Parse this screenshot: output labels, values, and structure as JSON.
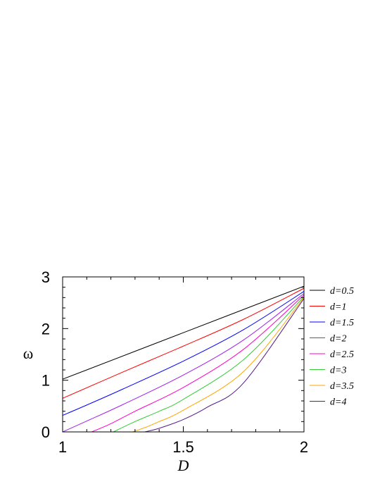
{
  "chart_data": {
    "type": "line",
    "title": "",
    "xlabel": "D",
    "ylabel": "ω",
    "xlim": [
      1,
      2
    ],
    "ylim": [
      0,
      3
    ],
    "x_ticks": [
      "1",
      "1.5",
      "2"
    ],
    "y_ticks": [
      "0",
      "1",
      "2",
      "3"
    ],
    "grid": false,
    "legend_position": "right",
    "series": [
      {
        "name": "d=0.5",
        "color": "#000000",
        "points": [
          [
            1.0,
            1.02
          ],
          [
            1.5,
            1.92
          ],
          [
            2.0,
            2.82
          ]
        ]
      },
      {
        "name": "d=1",
        "color": "#ff0000",
        "points": [
          [
            1.0,
            0.65
          ],
          [
            1.25,
            1.16
          ],
          [
            1.5,
            1.66
          ],
          [
            1.75,
            2.18
          ],
          [
            2.0,
            2.78
          ]
        ]
      },
      {
        "name": "d=1.5",
        "color": "#0000ff",
        "points": [
          [
            1.0,
            0.32
          ],
          [
            1.1,
            0.52
          ],
          [
            1.25,
            0.83
          ],
          [
            1.5,
            1.37
          ],
          [
            1.75,
            1.98
          ],
          [
            2.0,
            2.72
          ]
        ]
      },
      {
        "name": "d=2",
        "color": "#a020f0",
        "points": [
          [
            1.0,
            0.0
          ],
          [
            1.1,
            0.21
          ],
          [
            1.25,
            0.53
          ],
          [
            1.5,
            1.1
          ],
          [
            1.75,
            1.78
          ],
          [
            2.0,
            2.68
          ]
        ]
      },
      {
        "name": "d=2.5",
        "color": "#ff00c8",
        "points": [
          [
            1.12,
            0.0
          ],
          [
            1.2,
            0.16
          ],
          [
            1.3,
            0.4
          ],
          [
            1.5,
            0.86
          ],
          [
            1.75,
            1.6
          ],
          [
            2.0,
            2.65
          ]
        ]
      },
      {
        "name": "d=3",
        "color": "#33cc33",
        "points": [
          [
            1.21,
            0.0
          ],
          [
            1.3,
            0.2
          ],
          [
            1.4,
            0.4
          ],
          [
            1.5,
            0.63
          ],
          [
            1.75,
            1.4
          ],
          [
            2.0,
            2.62
          ]
        ]
      },
      {
        "name": "d=3.5",
        "color": "#ffa500",
        "points": [
          [
            1.29,
            0.0
          ],
          [
            1.35,
            0.1
          ],
          [
            1.4,
            0.2
          ],
          [
            1.5,
            0.42
          ],
          [
            1.75,
            1.17
          ],
          [
            2.0,
            2.6
          ]
        ]
      },
      {
        "name": "d=4",
        "color": "#551a8b",
        "points": [
          [
            1.34,
            0.0
          ],
          [
            1.4,
            0.07
          ],
          [
            1.5,
            0.24
          ],
          [
            1.6,
            0.48
          ],
          [
            1.75,
            0.95
          ],
          [
            2.0,
            2.58
          ]
        ]
      }
    ]
  }
}
